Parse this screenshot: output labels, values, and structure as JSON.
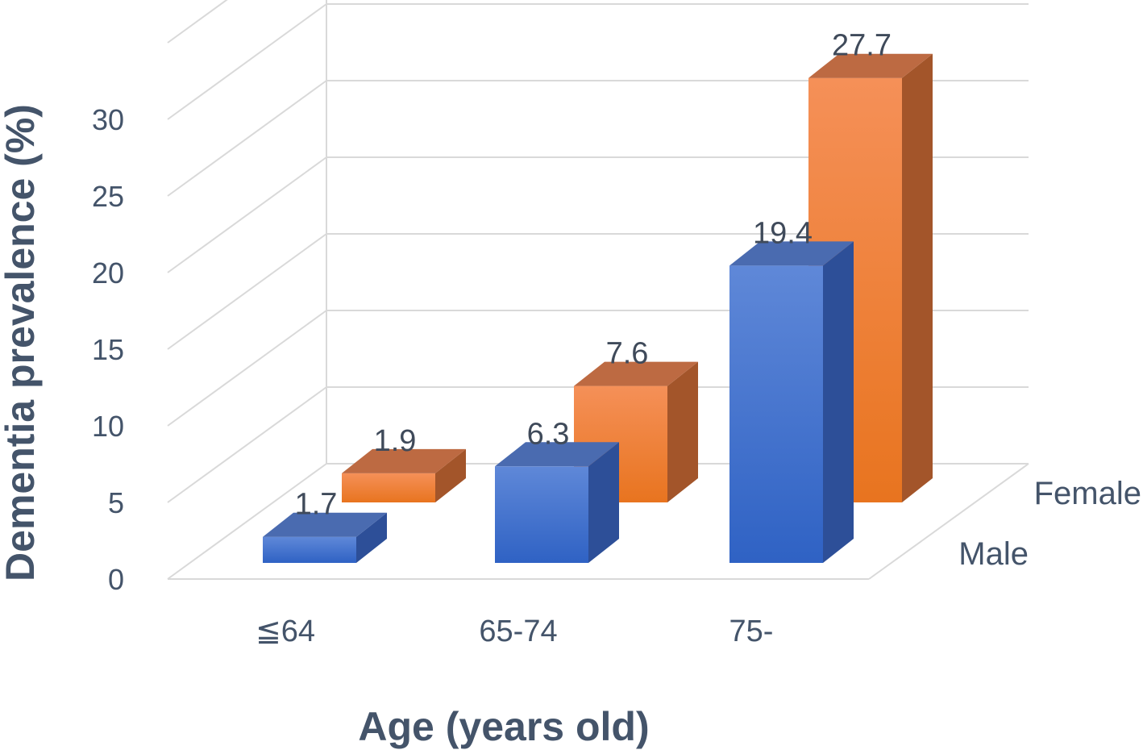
{
  "chart_data": {
    "type": "bar",
    "subtype": "3d-column",
    "title": "",
    "xlabel": "Age (years old)",
    "ylabel": "Dementia prevalence (%)",
    "ylim": [
      0,
      30
    ],
    "yticks": [
      "0",
      "5",
      "10",
      "15",
      "20",
      "25",
      "30"
    ],
    "grid": true,
    "categories": [
      "≦64",
      "65-74",
      "75-"
    ],
    "series": [
      {
        "name": "Male",
        "color": "#3a6fd0",
        "values": [
          1.7,
          6.3,
          19.4
        ],
        "data_labels": [
          "1.7",
          "6.3",
          "19.4"
        ]
      },
      {
        "name": "Female",
        "color": "#f27f2e",
        "values": [
          1.9,
          7.6,
          27.7
        ],
        "data_labels": [
          "1.9",
          "7.6",
          "27.7"
        ]
      }
    ]
  }
}
